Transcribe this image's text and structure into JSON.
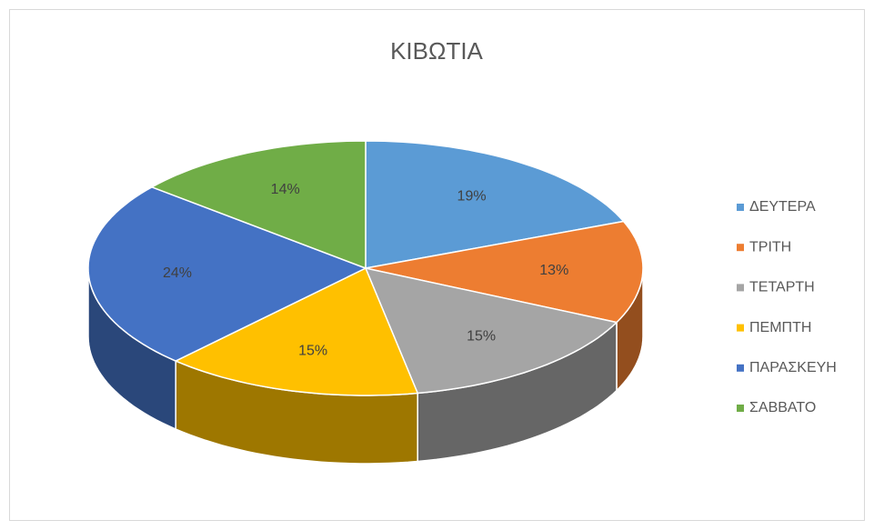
{
  "chart_data": {
    "type": "pie",
    "title": "ΚΙΒΩΤΙΑ",
    "categories": [
      "ΔΕΥΤΕΡΑ",
      "ΤΡΙΤΗ",
      "ΤΕΤΑΡΤΗ",
      "ΠΕΜΠΤΗ",
      "ΠΑΡΑΣΚΕΥΗ",
      "ΣΑΒΒΑΤΟ"
    ],
    "values": [
      19,
      13,
      15,
      15,
      24,
      14
    ],
    "value_labels": [
      "19%",
      "13%",
      "15%",
      "15%",
      "24%",
      "14%"
    ],
    "colors": [
      "#5b9bd5",
      "#ed7d31",
      "#a5a5a5",
      "#ffc000",
      "#4472c4",
      "#70ad47"
    ],
    "legend": "right"
  }
}
